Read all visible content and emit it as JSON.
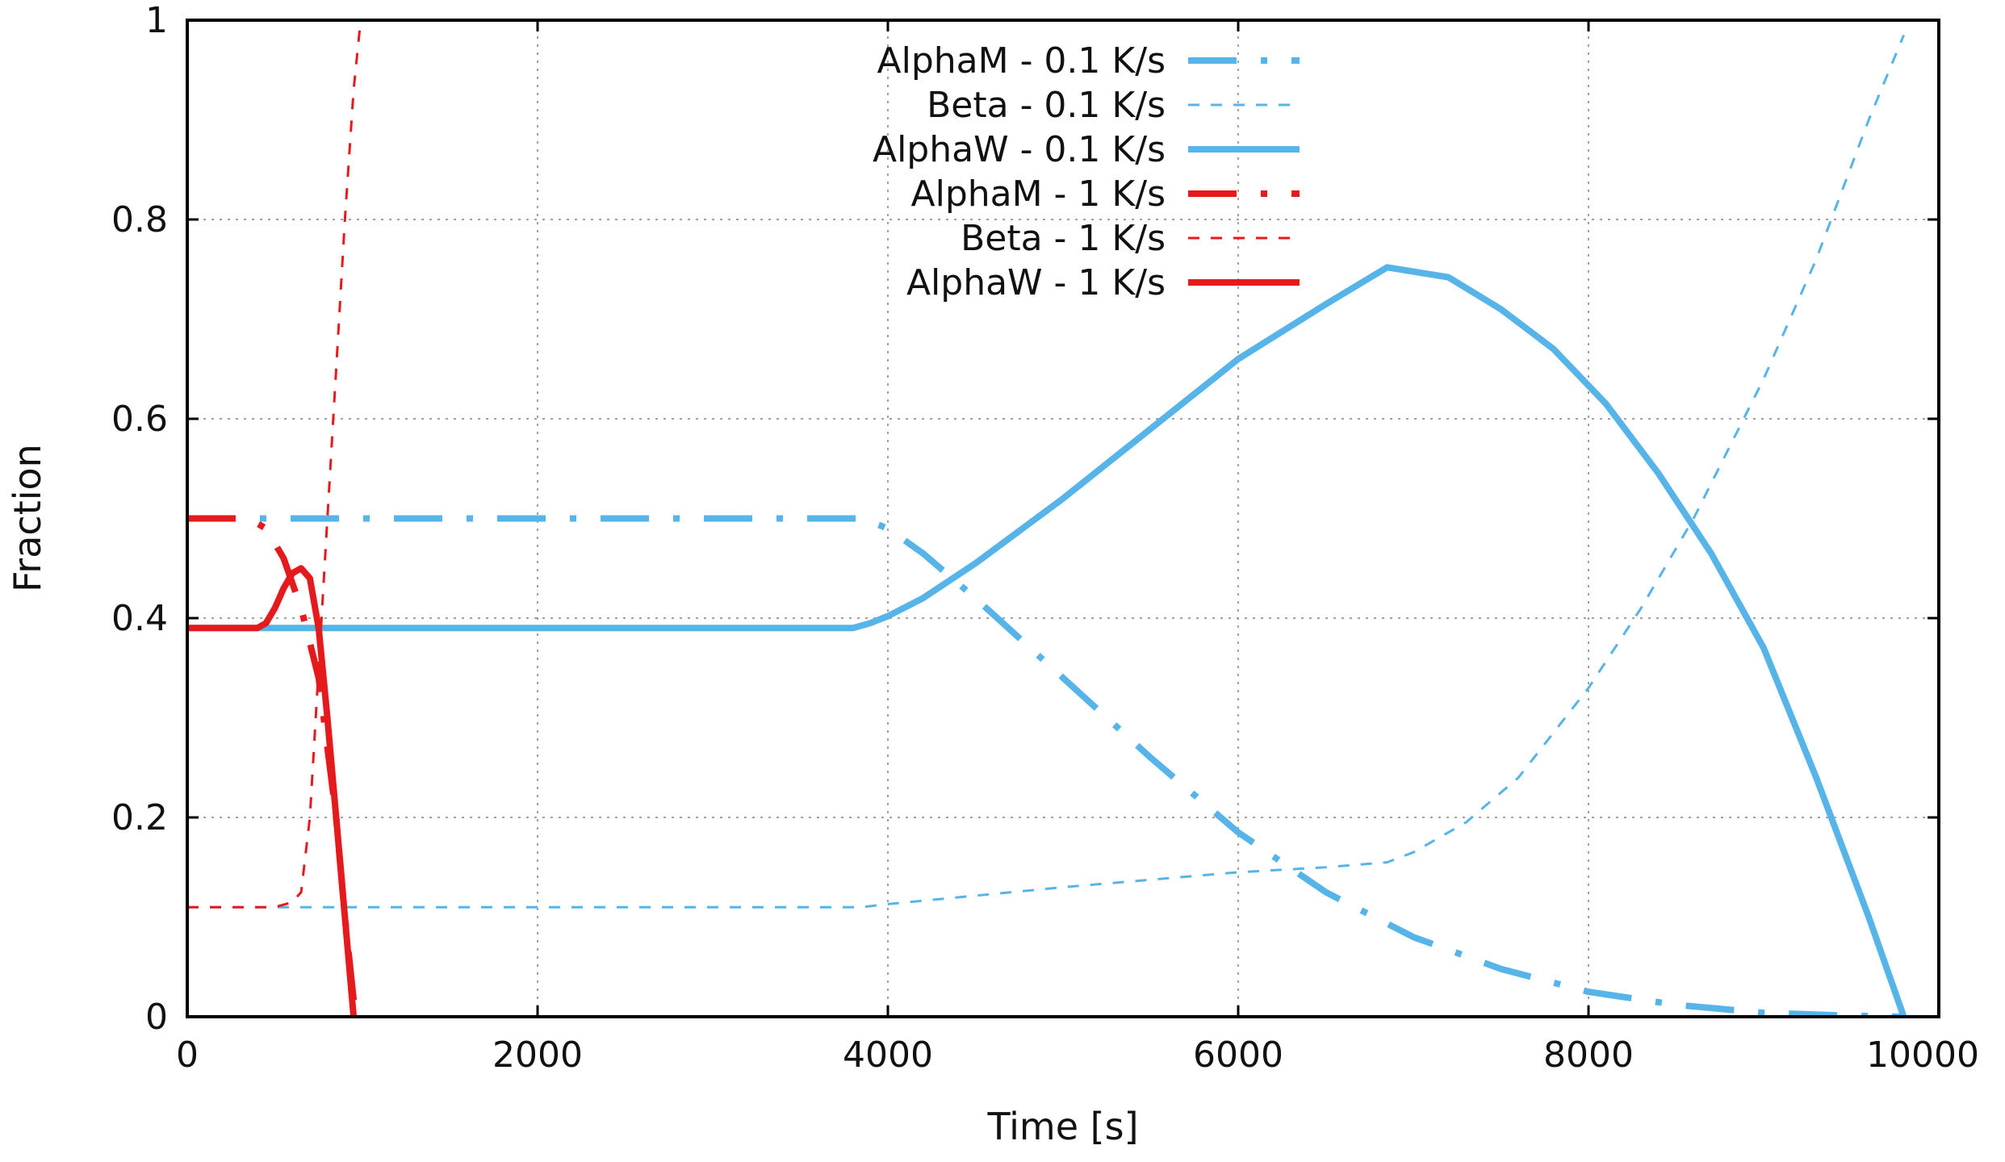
{
  "chart_data": {
    "type": "line",
    "title": "",
    "xlabel": "Time [s]",
    "ylabel": "Fraction",
    "xlim": [
      0,
      10000
    ],
    "ylim": [
      0,
      1
    ],
    "xticks": [
      0,
      2000,
      4000,
      6000,
      8000,
      10000
    ],
    "yticks": [
      0,
      0.2,
      0.4,
      0.6,
      0.8,
      1
    ],
    "xtick_labels": [
      "0",
      "2000",
      "4000",
      "6000",
      "8000",
      "10000"
    ],
    "ytick_labels": [
      "0",
      "0.2",
      "0.4",
      "0.6",
      "0.8",
      "1"
    ],
    "grid": true,
    "legend_position": "top-center",
    "series": [
      {
        "name": "AlphaM - 0.1 K/s",
        "color": "#56b4e9",
        "style": "dashdot",
        "width": "thick",
        "x": [
          0,
          1000,
          2000,
          3000,
          3850,
          4000,
          4200,
          4500,
          5000,
          5500,
          6000,
          6500,
          7000,
          7500,
          8000,
          8500,
          9000,
          9500,
          9800
        ],
        "y": [
          0.5,
          0.5,
          0.5,
          0.5,
          0.5,
          0.49,
          0.465,
          0.42,
          0.34,
          0.26,
          0.185,
          0.125,
          0.08,
          0.048,
          0.025,
          0.012,
          0.004,
          0.001,
          0.0
        ]
      },
      {
        "name": "Beta - 0.1 K/s",
        "color": "#56b4e9",
        "style": "dashed",
        "width": "thin",
        "x": [
          0,
          1000,
          2000,
          3000,
          3850,
          4000,
          5000,
          6000,
          6500,
          6850,
          7000,
          7300,
          7600,
          8000,
          8300,
          8600,
          9000,
          9300,
          9600,
          9800
        ],
        "y": [
          0.11,
          0.11,
          0.11,
          0.11,
          0.11,
          0.113,
          0.13,
          0.145,
          0.15,
          0.155,
          0.165,
          0.195,
          0.24,
          0.33,
          0.41,
          0.5,
          0.64,
          0.76,
          0.9,
          0.985
        ]
      },
      {
        "name": "AlphaW - 0.1 K/s",
        "color": "#56b4e9",
        "style": "solid",
        "width": "thick",
        "x": [
          0,
          1000,
          2000,
          3000,
          3800,
          3900,
          4000,
          4200,
          4500,
          5000,
          5500,
          6000,
          6500,
          6850,
          7200,
          7500,
          7800,
          8100,
          8400,
          8700,
          9000,
          9300,
          9600,
          9800
        ],
        "y": [
          0.39,
          0.39,
          0.39,
          0.39,
          0.39,
          0.395,
          0.402,
          0.42,
          0.455,
          0.52,
          0.59,
          0.66,
          0.715,
          0.752,
          0.742,
          0.71,
          0.67,
          0.615,
          0.545,
          0.465,
          0.37,
          0.24,
          0.1,
          0.0
        ]
      },
      {
        "name": "AlphaM  -  1 K/s",
        "color": "#e41a1c",
        "style": "dashdot",
        "width": "thick",
        "x": [
          0,
          350,
          450,
          550,
          650,
          750,
          850,
          900,
          960
        ],
        "y": [
          0.5,
          0.5,
          0.49,
          0.46,
          0.41,
          0.34,
          0.2,
          0.1,
          0.0
        ]
      },
      {
        "name": "Beta  -  1 K/s",
        "color": "#e41a1c",
        "style": "dashed",
        "width": "thin",
        "x": [
          0,
          500,
          600,
          650,
          700,
          750,
          800,
          850,
          900,
          950,
          990
        ],
        "y": [
          0.11,
          0.11,
          0.115,
          0.125,
          0.2,
          0.35,
          0.5,
          0.65,
          0.8,
          0.93,
          1.0
        ]
      },
      {
        "name": "AlphaW  -  1 K/s",
        "color": "#e41a1c",
        "style": "solid",
        "width": "thick",
        "x": [
          0,
          400,
          450,
          500,
          550,
          600,
          650,
          700,
          750,
          800,
          850,
          900,
          950
        ],
        "y": [
          0.39,
          0.39,
          0.395,
          0.41,
          0.43,
          0.445,
          0.45,
          0.44,
          0.39,
          0.3,
          0.2,
          0.1,
          0.0
        ]
      }
    ]
  }
}
